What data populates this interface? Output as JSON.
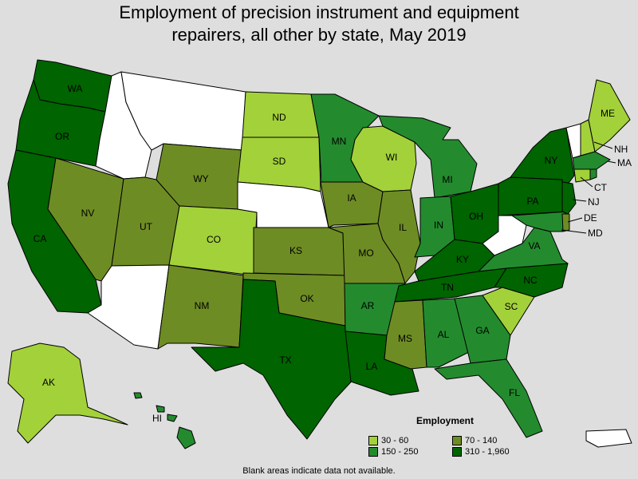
{
  "title_line1": "Employment of precision instrument and equipment",
  "title_line2": "repairers, all other by state, May 2019",
  "legend": {
    "title": "Employment",
    "items": [
      {
        "label": "30 - 60",
        "color": "#a3d13a"
      },
      {
        "label": "70 - 140",
        "color": "#6e8c24"
      },
      {
        "label": "150 - 250",
        "color": "#238b2e"
      },
      {
        "label": "310 - 1,960",
        "color": "#006400"
      }
    ]
  },
  "footnote": "Blank areas indicate data not available.",
  "colors": {
    "nodata": "#ffffff",
    "background": "#dedede"
  },
  "states": {
    "WA": "310 - 1,960",
    "OR": "310 - 1,960",
    "CA": "310 - 1,960",
    "ID": "no data",
    "MT": "no data",
    "NV": "70 - 140",
    "UT": "70 - 140",
    "AZ": "no data",
    "WY": "70 - 140",
    "CO": "30 - 60",
    "NM": "70 - 140",
    "ND": "30 - 60",
    "SD": "30 - 60",
    "NE": "no data",
    "KS": "70 - 140",
    "OK": "70 - 140",
    "TX": "310 - 1,960",
    "MN": "150 - 250",
    "IA": "70 - 140",
    "MO": "70 - 140",
    "AR": "150 - 250",
    "LA": "310 - 1,960",
    "WI": "30 - 60",
    "IL": "70 - 140",
    "MI": "150 - 250",
    "IN": "150 - 250",
    "OH": "310 - 1,960",
    "KY": "310 - 1,960",
    "TN": "310 - 1,960",
    "MS": "70 - 140",
    "AL": "150 - 250",
    "GA": "150 - 250",
    "FL": "150 - 250",
    "SC": "30 - 60",
    "NC": "310 - 1,960",
    "VA": "150 - 250",
    "WV": "no data",
    "PA": "310 - 1,960",
    "NY": "310 - 1,960",
    "VT": "no data",
    "NH": "30 - 60",
    "ME": "30 - 60",
    "MA": "150 - 250",
    "RI": "150 - 250",
    "CT": "30 - 60",
    "NJ": "310 - 1,960",
    "DE": "70 - 140",
    "MD": "150 - 250",
    "AK": "30 - 60",
    "HI": "150 - 250",
    "PR": "no data"
  },
  "labels": {
    "WA": "WA",
    "OR": "OR",
    "CA": "CA",
    "NV": "NV",
    "UT": "UT",
    "WY": "WY",
    "CO": "CO",
    "NM": "NM",
    "ND": "ND",
    "SD": "SD",
    "KS": "KS",
    "OK": "OK",
    "TX": "TX",
    "MN": "MN",
    "IA": "IA",
    "MO": "MO",
    "AR": "AR",
    "LA": "LA",
    "WI": "WI",
    "IL": "IL",
    "MI": "MI",
    "IN": "IN",
    "OH": "OH",
    "KY": "KY",
    "TN": "TN",
    "MS": "MS",
    "AL": "AL",
    "GA": "GA",
    "FL": "FL",
    "SC": "SC",
    "NC": "NC",
    "VA": "VA",
    "PA": "PA",
    "NY": "NY",
    "ME": "ME",
    "NH": "NH",
    "MA": "MA",
    "CT": "CT",
    "NJ": "NJ",
    "DE": "DE",
    "MD": "MD",
    "AK": "AK",
    "HI": "HI"
  }
}
